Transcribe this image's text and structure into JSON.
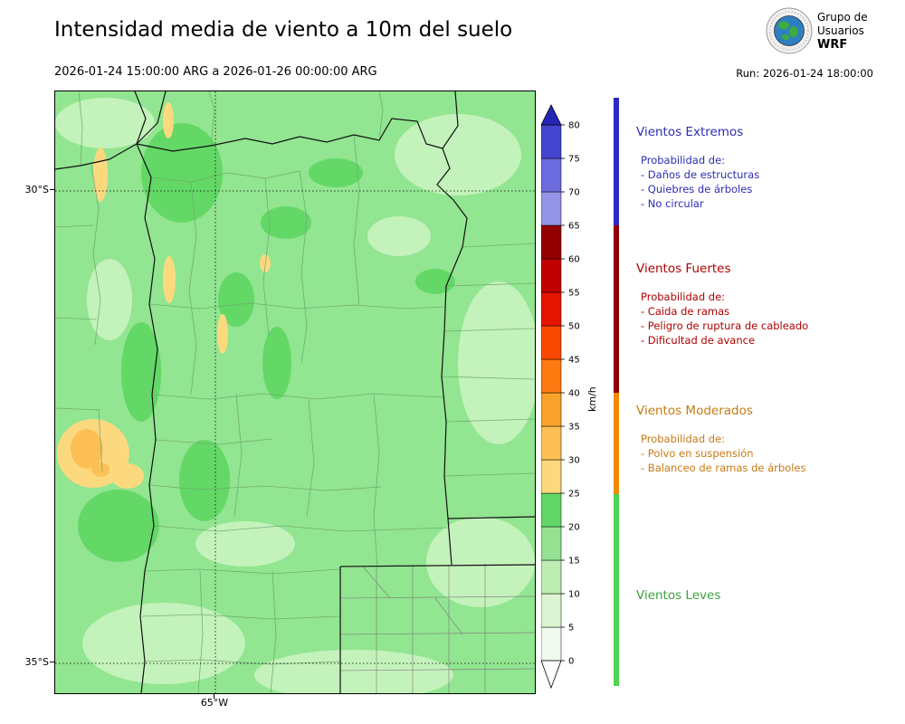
{
  "header": {
    "title": "Intensidad media de viento a 10m del suelo",
    "period": "2026-01-24 15:00:00 ARG  a  2026-01-26 00:00:00 ARG",
    "run": "Run: 2026-01-24 18:00:00",
    "logo": {
      "org_line1": "Grupo de",
      "org_line2": "Usuarios",
      "org_line3": "WRF"
    }
  },
  "map": {
    "lat_labels": [
      "30°S",
      "35°S"
    ],
    "lon_label": "65°W",
    "base_color": "#92e591",
    "light_patch_color": "#c4f2bb",
    "dark_patch_color": "#63d866",
    "yellow_patch_color": "#fcd97f",
    "orange_patch_color": "#fcc055"
  },
  "colorbar": {
    "unit": "km/h",
    "tick_min": 0,
    "tick_max": 80,
    "tick_step": 5,
    "colors_bottom_to_top": [
      "#f2faef",
      "#dcf4d3",
      "#bdedb3",
      "#94e291",
      "#62d767",
      "#fcd97f",
      "#fcc055",
      "#f9a22b",
      "#fd7a11",
      "#f94800",
      "#e51500",
      "#c00000",
      "#920000",
      "#9494e9",
      "#6b6bde",
      "#4444ce"
    ],
    "under_color": "#ffffff",
    "over_color": "#2626b6"
  },
  "legend": {
    "strip_colors": [
      "#2b2bc4",
      "#8f0000",
      "#f08c00",
      "#4ed44e"
    ],
    "sections": [
      {
        "title": "Vientos Extremos",
        "color": "#2d2db4",
        "items": [
          "Probabilidad de:",
          "- Daños de estructuras",
          "- Quiebres de árboles",
          "- No circular"
        ]
      },
      {
        "title": "Vientos Fuertes",
        "color": "#b00000",
        "items": [
          "Probabilidad de:",
          "- Caida de ramas",
          "- Peligro de ruptura de cableado",
          "- Dificultad de avance"
        ]
      },
      {
        "title": "Vientos Moderados",
        "color": "#c87a14",
        "items": [
          "Probabilidad de:",
          "- Polvo en suspensión",
          "- Balanceo de ramas de árboles"
        ]
      },
      {
        "title": "Vientos Leves",
        "color": "#3da23d",
        "items": []
      }
    ]
  },
  "chart_data": {
    "type": "heatmap",
    "title": "Intensidad media de viento a 10m del suelo",
    "period_start": "2026-01-24 15:00:00 ARG",
    "period_end": "2026-01-26 00:00:00 ARG",
    "run": "2026-01-24 18:00:00",
    "unit": "km/h",
    "colorbar_range": [
      0,
      80
    ],
    "colorbar_step": 5,
    "lat_ticks": [
      "30°S",
      "35°S"
    ],
    "lon_ticks": [
      "65°W"
    ],
    "dominant_value_range_kmh": [
      10,
      25
    ],
    "local_maxima_value_range_kmh": [
      25,
      35
    ],
    "categories": [
      {
        "name": "Vientos Leves",
        "range_kmh": [
          0,
          25
        ]
      },
      {
        "name": "Vientos Moderados",
        "range_kmh": [
          25,
          40
        ]
      },
      {
        "name": "Vientos Fuertes",
        "range_kmh": [
          40,
          65
        ]
      },
      {
        "name": "Vientos Extremos",
        "range_kmh": [
          65,
          80
        ]
      }
    ]
  }
}
